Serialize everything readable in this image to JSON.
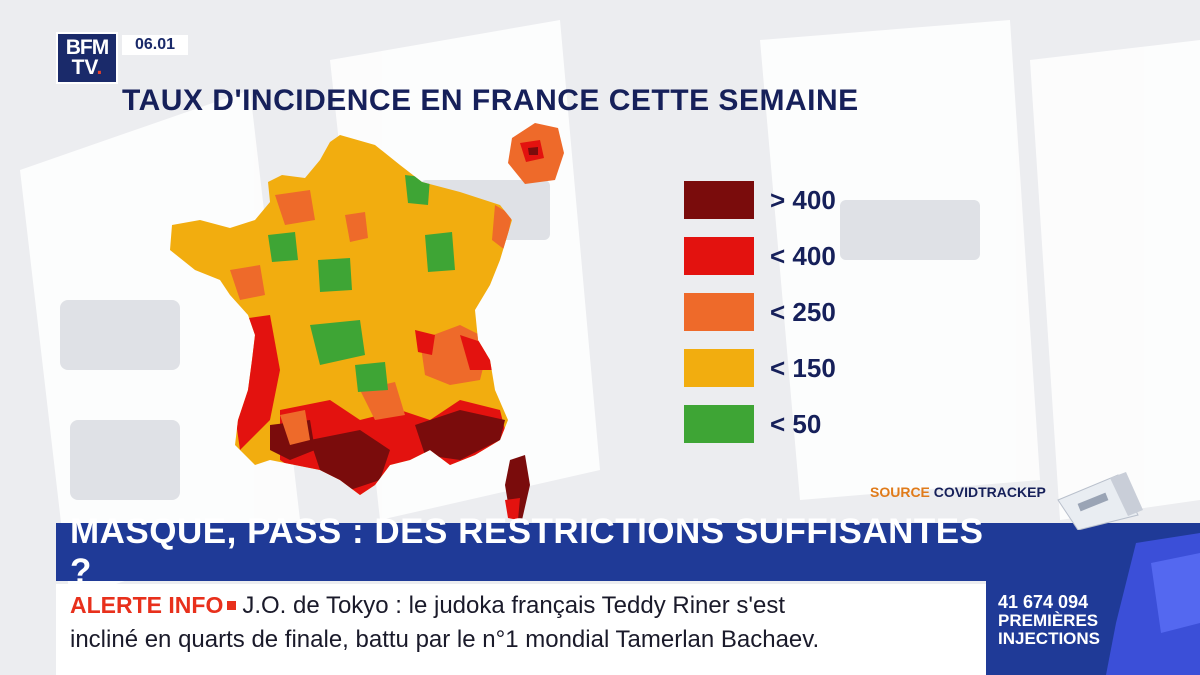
{
  "header": {
    "logo_line1": "BFM",
    "logo_line2": "TV",
    "logo_dot": ".",
    "time": "06.01"
  },
  "map": {
    "title": "TAUX D'INCIDENCE EN FRANCE CETTE SEMAINE",
    "colors": {
      "gt400": "#7a0c0c",
      "lt400": "#e3120f",
      "lt250": "#ee6a2a",
      "lt150": "#f2ad0f",
      "lt50": "#3ea535"
    },
    "legend": [
      {
        "label": "> 400",
        "color": "#7a0c0c"
      },
      {
        "label": "< 400",
        "color": "#e3120f"
      },
      {
        "label": "< 250",
        "color": "#ee6a2a"
      },
      {
        "label": "< 150",
        "color": "#f2ad0f"
      },
      {
        "label": "< 50",
        "color": "#3ea535"
      }
    ],
    "source_prefix": "SOURCE ",
    "source_name": "COVIDTRACKEP"
  },
  "headline": "MASQUE, PASS : DES RESTRICTIONS SUFFISANTES ?",
  "ticker": {
    "alert_label": "ALERTE INFO",
    "line1": "J.O. de Tokyo : le judoka français Teddy Riner s'est",
    "line2": "incliné en quarts de finale, battu par le n°1 mondial Tamerlan Bachaev."
  },
  "side": {
    "counter_value": "41 674 094",
    "counter_label1": "PREMIÈRES",
    "counter_label2": "INJECTIONS"
  }
}
